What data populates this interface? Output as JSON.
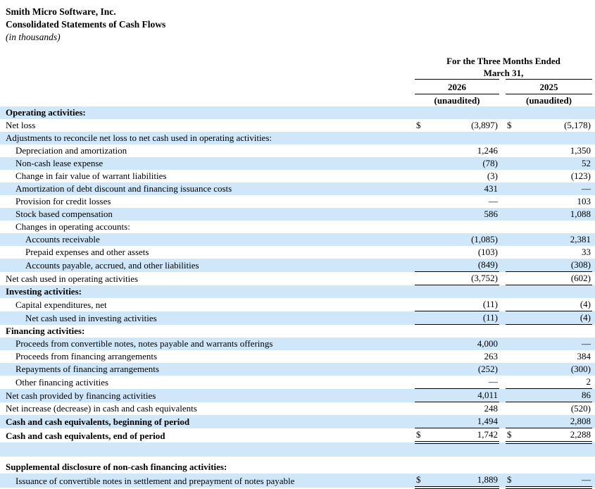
{
  "document": {
    "company": "Smith Micro Software, Inc.",
    "statement_title": "Consolidated Statements of Cash Flows",
    "units_note": "(in thousands)"
  },
  "table": {
    "period_line1": "For the Three Months Ended",
    "period_line2": "March 31,",
    "columns": [
      {
        "year": "2026",
        "note": "(unaudited)"
      },
      {
        "year": "2025",
        "note": "(unaudited)"
      }
    ],
    "colors": {
      "row_shade": "#d0e7fa",
      "text": "#000000",
      "rule": "#000000"
    },
    "rows": [
      {
        "label": "Operating activities:",
        "indent": 0,
        "bold": true,
        "shaded": true,
        "d1": "",
        "v1": "",
        "d2": "",
        "v2": "",
        "rule": "none"
      },
      {
        "label": "Net loss",
        "indent": 0,
        "bold": false,
        "shaded": false,
        "d1": "$",
        "v1": "(3,897)",
        "d2": "$",
        "v2": "(5,178)",
        "rule": "none"
      },
      {
        "label": "Adjustments to reconcile net loss to net cash used in operating activities:",
        "indent": 0,
        "bold": false,
        "shaded": true,
        "d1": "",
        "v1": "",
        "d2": "",
        "v2": "",
        "rule": "none"
      },
      {
        "label": "Depreciation and amortization",
        "indent": 1,
        "bold": false,
        "shaded": false,
        "d1": "",
        "v1": "1,246",
        "d2": "",
        "v2": "1,350",
        "rule": "none"
      },
      {
        "label": "Non-cash lease expense",
        "indent": 1,
        "bold": false,
        "shaded": true,
        "d1": "",
        "v1": "(78)",
        "d2": "",
        "v2": "52",
        "rule": "none"
      },
      {
        "label": "Change in fair value of warrant liabilities",
        "indent": 1,
        "bold": false,
        "shaded": false,
        "d1": "",
        "v1": "(3)",
        "d2": "",
        "v2": "(123)",
        "rule": "none"
      },
      {
        "label": "Amortization of debt discount and financing issuance costs",
        "indent": 1,
        "bold": false,
        "shaded": true,
        "d1": "",
        "v1": "431",
        "d2": "",
        "v2": "—",
        "rule": "none"
      },
      {
        "label": "Provision for credit losses",
        "indent": 1,
        "bold": false,
        "shaded": false,
        "d1": "",
        "v1": "—",
        "d2": "",
        "v2": "103",
        "rule": "none"
      },
      {
        "label": "Stock based compensation",
        "indent": 1,
        "bold": false,
        "shaded": true,
        "d1": "",
        "v1": "586",
        "d2": "",
        "v2": "1,088",
        "rule": "none"
      },
      {
        "label": "Changes in operating accounts:",
        "indent": 1,
        "bold": false,
        "shaded": false,
        "d1": "",
        "v1": "",
        "d2": "",
        "v2": "",
        "rule": "none"
      },
      {
        "label": "Accounts receivable",
        "indent": 2,
        "bold": false,
        "shaded": true,
        "d1": "",
        "v1": "(1,085)",
        "d2": "",
        "v2": "2,381",
        "rule": "none"
      },
      {
        "label": "Prepaid expenses and other assets",
        "indent": 2,
        "bold": false,
        "shaded": false,
        "d1": "",
        "v1": "(103)",
        "d2": "",
        "v2": "33",
        "rule": "none"
      },
      {
        "label": "Accounts payable, accrued, and other liabilities",
        "indent": 2,
        "bold": false,
        "shaded": true,
        "d1": "",
        "v1": "(849)",
        "d2": "",
        "v2": "(308)",
        "rule": "single"
      },
      {
        "label": "Net cash used in operating activities",
        "indent": 0,
        "bold": false,
        "shaded": false,
        "d1": "",
        "v1": "(3,752)",
        "d2": "",
        "v2": "(602)",
        "rule": "single"
      },
      {
        "label": "Investing activities:",
        "indent": 0,
        "bold": true,
        "shaded": true,
        "d1": "",
        "v1": "",
        "d2": "",
        "v2": "",
        "rule": "none"
      },
      {
        "label": "Capital expenditures, net",
        "indent": 1,
        "bold": false,
        "shaded": false,
        "d1": "",
        "v1": "(11)",
        "d2": "",
        "v2": "(4)",
        "rule": "single"
      },
      {
        "label": "Net cash used in investing activities",
        "indent": 2,
        "bold": false,
        "shaded": true,
        "d1": "",
        "v1": "(11)",
        "d2": "",
        "v2": "(4)",
        "rule": "single"
      },
      {
        "label": "Financing activities:",
        "indent": 0,
        "bold": true,
        "shaded": false,
        "d1": "",
        "v1": "",
        "d2": "",
        "v2": "",
        "rule": "none"
      },
      {
        "label": "Proceeds from convertible notes, notes payable and warrants offerings",
        "indent": 1,
        "bold": false,
        "shaded": true,
        "d1": "",
        "v1": "4,000",
        "d2": "",
        "v2": "—",
        "rule": "none"
      },
      {
        "label": "Proceeds from financing arrangements",
        "indent": 1,
        "bold": false,
        "shaded": false,
        "d1": "",
        "v1": "263",
        "d2": "",
        "v2": "384",
        "rule": "none"
      },
      {
        "label": "Repayments of financing arrangements",
        "indent": 1,
        "bold": false,
        "shaded": true,
        "d1": "",
        "v1": "(252)",
        "d2": "",
        "v2": "(300)",
        "rule": "none"
      },
      {
        "label": "Other financing activities",
        "indent": 1,
        "bold": false,
        "shaded": false,
        "d1": "",
        "v1": "—",
        "d2": "",
        "v2": "2",
        "rule": "single"
      },
      {
        "label": "Net cash provided by financing activities",
        "indent": 0,
        "bold": false,
        "shaded": true,
        "d1": "",
        "v1": "4,011",
        "d2": "",
        "v2": "86",
        "rule": "single"
      },
      {
        "label": "Net increase (decrease) in cash and cash equivalents",
        "indent": 0,
        "bold": false,
        "shaded": false,
        "d1": "",
        "v1": "248",
        "d2": "",
        "v2": "(520)",
        "rule": "none"
      },
      {
        "label": "Cash and cash equivalents, beginning of period",
        "indent": 0,
        "bold": true,
        "shaded": true,
        "d1": "",
        "v1": "1,494",
        "d2": "",
        "v2": "2,808",
        "rule": "single"
      },
      {
        "label": "Cash and cash equivalents, end of period",
        "indent": 0,
        "bold": true,
        "shaded": false,
        "d1": "$",
        "v1": "1,742",
        "d2": "$",
        "v2": "2,288",
        "rule": "double"
      },
      {
        "spacer": true,
        "shaded": true,
        "rule": "none"
      },
      {
        "spacer": true,
        "shaded": false,
        "height": 6,
        "rule": "none"
      },
      {
        "label": "Supplemental disclosure of non-cash financing activities:",
        "indent": 0,
        "bold": true,
        "shaded": false,
        "d1": "",
        "v1": "",
        "d2": "",
        "v2": "",
        "rule": "none"
      },
      {
        "label": "Issuance of convertible notes in settlement and prepayment of notes payable",
        "indent": 1,
        "bold": false,
        "shaded": true,
        "d1": "$",
        "v1": "1,889",
        "d2": "$",
        "v2": "—",
        "rule": "double"
      }
    ]
  }
}
